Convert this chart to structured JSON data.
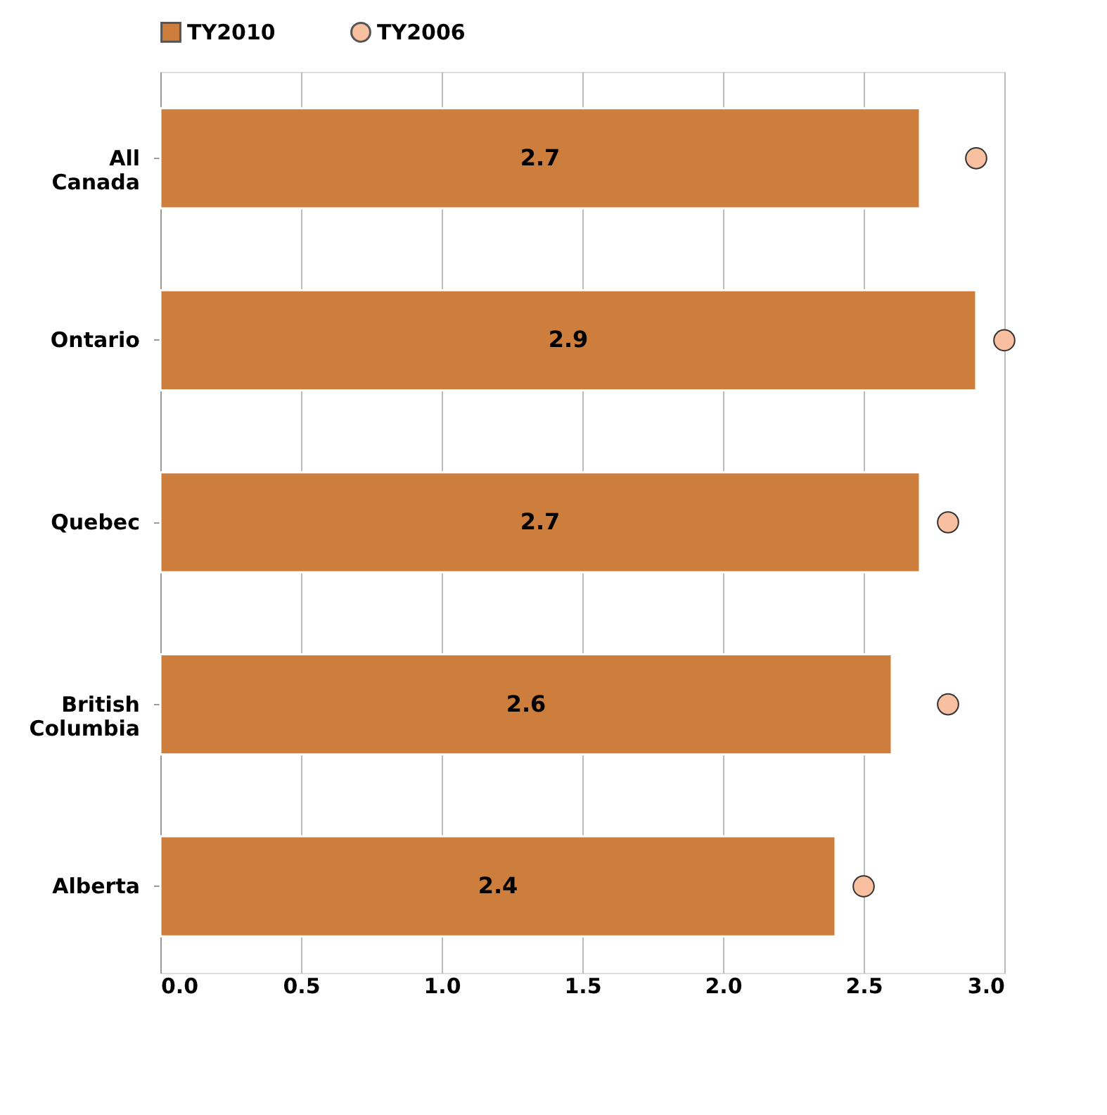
{
  "chart_data": {
    "type": "bar",
    "orientation": "horizontal",
    "categories": [
      "All Canada",
      "Ontario",
      "Quebec",
      "British Columbia",
      "Alberta"
    ],
    "series": [
      {
        "name": "TY2010",
        "type": "bar",
        "color": "#cd7d3c",
        "values": [
          2.7,
          2.9,
          2.7,
          2.6,
          2.4
        ],
        "value_labels": [
          "2.7",
          "2.9",
          "2.7",
          "2.6",
          "2.4"
        ]
      },
      {
        "name": "TY2006",
        "type": "scatter",
        "color": "#f8c0a0",
        "marker": "circle",
        "values": [
          2.9,
          3.0,
          2.8,
          2.8,
          2.5
        ]
      }
    ],
    "xlim": [
      0,
      3
    ],
    "xticks": [
      {
        "value": 0,
        "label": "0.0"
      },
      {
        "value": 0.5,
        "label": "0.5"
      },
      {
        "value": 1,
        "label": "1.0"
      },
      {
        "value": 1.5,
        "label": "1.5"
      },
      {
        "value": 2,
        "label": "2.0"
      },
      {
        "value": 2.5,
        "label": "2.5"
      },
      {
        "value": 3,
        "label": "3.0"
      }
    ],
    "grid": "x",
    "legend": "top"
  }
}
